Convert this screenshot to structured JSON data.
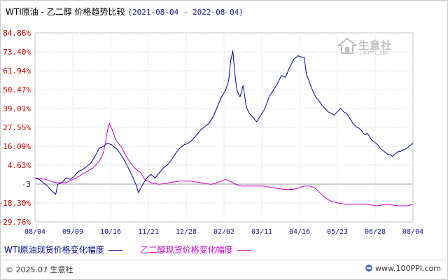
{
  "title": {
    "main": "WTI原油 - 乙二醇 价格趋势比较",
    "date_range": "(2021-08-04 - 2022-08-04)"
  },
  "watermark": {
    "text": "生意社",
    "url": "100PPI.COM"
  },
  "legend": {
    "wti": "WTI原油现货价格变化幅度",
    "eg": "乙二醇现货价格变化幅度"
  },
  "footer": {
    "copyright": "© 2025.07 生意社",
    "site": "www.100PPI.com"
  },
  "colors": {
    "wti": "#000099",
    "eg": "#cc00cc",
    "axis_label": "#cc0000",
    "x_label": "#1a1a8c",
    "grid": "#d6d6d6",
    "zero_line": "#999999"
  },
  "chart_data": {
    "type": "line",
    "title": "WTI原油 - 乙二醇 价格趋势比较",
    "x_range": [
      "2021-08-04",
      "2022-08-04"
    ],
    "x_ticks": [
      "08/04",
      "09/09",
      "10/16",
      "11/21",
      "12/28",
      "02/02",
      "03/11",
      "04/16",
      "05/23",
      "06/28",
      "08/04"
    ],
    "y_ticks": [
      "84.86%",
      "73.40%",
      "61.94%",
      "50.47%",
      "39.01%",
      "27.55%",
      "16.09%",
      "4.63%",
      "-3",
      "-18.30%",
      "-29.76%"
    ],
    "ylim": [
      -29.76,
      84.86
    ],
    "grid": true,
    "legend_position": "bottom",
    "series": [
      {
        "name": "WTI原油现货价格变化幅度",
        "points": [
          [
            0,
            -3
          ],
          [
            4,
            -4
          ],
          [
            8,
            -6
          ],
          [
            12,
            -8
          ],
          [
            16,
            -11
          ],
          [
            20,
            -13
          ],
          [
            22,
            -7
          ],
          [
            26,
            -6
          ],
          [
            30,
            -3
          ],
          [
            34,
            -4
          ],
          [
            38,
            -2
          ],
          [
            42,
            1
          ],
          [
            46,
            2
          ],
          [
            50,
            4
          ],
          [
            54,
            6
          ],
          [
            58,
            10
          ],
          [
            62,
            15
          ],
          [
            66,
            16
          ],
          [
            70,
            18
          ],
          [
            74,
            17
          ],
          [
            78,
            15
          ],
          [
            82,
            12
          ],
          [
            86,
            8
          ],
          [
            90,
            3
          ],
          [
            94,
            -2
          ],
          [
            98,
            -8
          ],
          [
            100,
            -12
          ],
          [
            104,
            -7
          ],
          [
            108,
            -3
          ],
          [
            112,
            -1
          ],
          [
            116,
            -3
          ],
          [
            120,
            0
          ],
          [
            124,
            3
          ],
          [
            128,
            5
          ],
          [
            132,
            8
          ],
          [
            136,
            12
          ],
          [
            140,
            15
          ],
          [
            144,
            17
          ],
          [
            148,
            18
          ],
          [
            152,
            20
          ],
          [
            156,
            23
          ],
          [
            160,
            26
          ],
          [
            164,
            28
          ],
          [
            168,
            30
          ],
          [
            172,
            34
          ],
          [
            176,
            40
          ],
          [
            180,
            46
          ],
          [
            184,
            50
          ],
          [
            187,
            56
          ],
          [
            189,
            68
          ],
          [
            191,
            74
          ],
          [
            193,
            60
          ],
          [
            195,
            50
          ],
          [
            198,
            46
          ],
          [
            201,
            53
          ],
          [
            204,
            40
          ],
          [
            207,
            36
          ],
          [
            210,
            34
          ],
          [
            214,
            31
          ],
          [
            218,
            35
          ],
          [
            222,
            39
          ],
          [
            226,
            46
          ],
          [
            230,
            50
          ],
          [
            234,
            54
          ],
          [
            238,
            59
          ],
          [
            242,
            58
          ],
          [
            246,
            64
          ],
          [
            250,
            69
          ],
          [
            254,
            71
          ],
          [
            258,
            70
          ],
          [
            260,
            70
          ],
          [
            262,
            60
          ],
          [
            265,
            55
          ],
          [
            268,
            50
          ],
          [
            271,
            46
          ],
          [
            274,
            44
          ],
          [
            277,
            41
          ],
          [
            280,
            39
          ],
          [
            283,
            37
          ],
          [
            286,
            36
          ],
          [
            289,
            35
          ],
          [
            292,
            37
          ],
          [
            295,
            39
          ],
          [
            298,
            37
          ],
          [
            301,
            36
          ],
          [
            304,
            33
          ],
          [
            307,
            30
          ],
          [
            310,
            28
          ],
          [
            313,
            27
          ],
          [
            315,
            26
          ],
          [
            317,
            24
          ],
          [
            319,
            23
          ],
          [
            321,
            24
          ],
          [
            323,
            22
          ],
          [
            325,
            20
          ],
          [
            327,
            19
          ],
          [
            329,
            18
          ],
          [
            331,
            17
          ],
          [
            333,
            15
          ],
          [
            335,
            14
          ],
          [
            337,
            13
          ],
          [
            339,
            12
          ],
          [
            341,
            11
          ],
          [
            343,
            11
          ],
          [
            345,
            10
          ],
          [
            347,
            11
          ],
          [
            349,
            12
          ],
          [
            351,
            13
          ],
          [
            353,
            13
          ],
          [
            355,
            14
          ],
          [
            357,
            14
          ],
          [
            359,
            15
          ],
          [
            361,
            16
          ],
          [
            363,
            17
          ],
          [
            365,
            18
          ]
        ]
      },
      {
        "name": "乙二醇现货价格变化幅度",
        "points": [
          [
            0,
            -3
          ],
          [
            10,
            -4
          ],
          [
            20,
            -6
          ],
          [
            30,
            -6
          ],
          [
            40,
            -3
          ],
          [
            48,
            0
          ],
          [
            56,
            3
          ],
          [
            62,
            7
          ],
          [
            66,
            12
          ],
          [
            68,
            18
          ],
          [
            70,
            26
          ],
          [
            72,
            30
          ],
          [
            74,
            27
          ],
          [
            78,
            20
          ],
          [
            84,
            15
          ],
          [
            90,
            8
          ],
          [
            96,
            3
          ],
          [
            102,
            0
          ],
          [
            106,
            -4
          ],
          [
            112,
            -6
          ],
          [
            120,
            -7
          ],
          [
            130,
            -6
          ],
          [
            140,
            -5
          ],
          [
            150,
            -5
          ],
          [
            160,
            -6
          ],
          [
            170,
            -7
          ],
          [
            176,
            -6
          ],
          [
            180,
            -5
          ],
          [
            184,
            -4
          ],
          [
            188,
            -5
          ],
          [
            194,
            -7
          ],
          [
            200,
            -8
          ],
          [
            210,
            -8
          ],
          [
            220,
            -8
          ],
          [
            230,
            -9
          ],
          [
            240,
            -10
          ],
          [
            250,
            -10
          ],
          [
            255,
            -9
          ],
          [
            260,
            -8
          ],
          [
            265,
            -8
          ],
          [
            270,
            -9
          ],
          [
            275,
            -12
          ],
          [
            280,
            -15
          ],
          [
            285,
            -17
          ],
          [
            290,
            -18
          ],
          [
            300,
            -19
          ],
          [
            310,
            -19
          ],
          [
            320,
            -19
          ],
          [
            330,
            -20
          ],
          [
            340,
            -19
          ],
          [
            350,
            -20
          ],
          [
            360,
            -20
          ],
          [
            365,
            -19
          ]
        ]
      }
    ],
    "dates": [
      "08/04",
      "09/09",
      "10/16",
      "11/21",
      "12/28",
      "02/02",
      "03/11",
      "04/16",
      "05/23",
      "06/28",
      "08/04"
    ],
    "ylabel": "",
    "xlabel": ""
  }
}
